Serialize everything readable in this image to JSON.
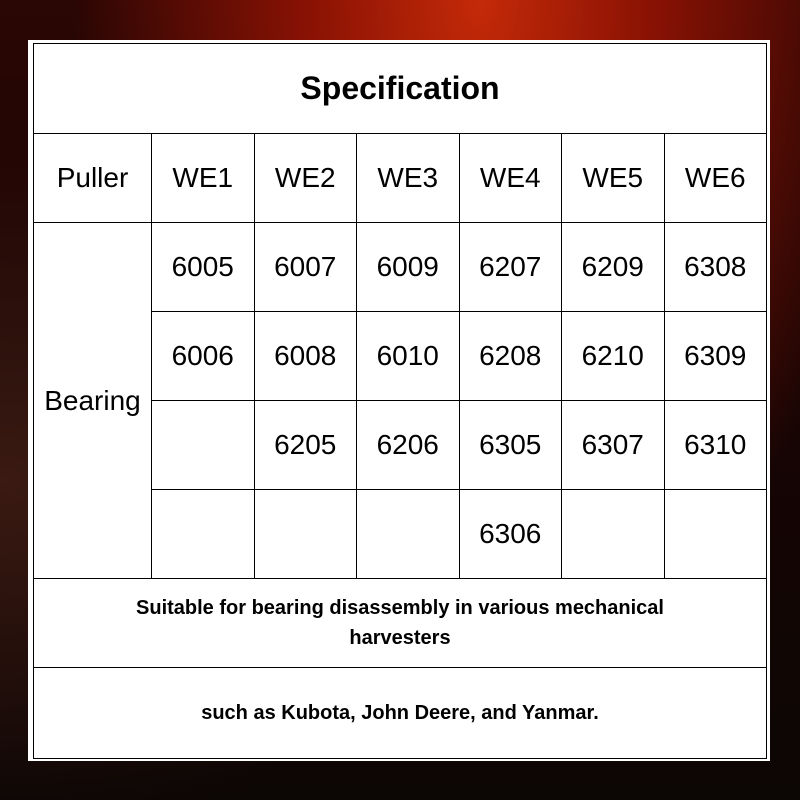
{
  "title": "Specification",
  "header": {
    "label": "Puller",
    "models": [
      "WE1",
      "WE2",
      "WE3",
      "WE4",
      "WE5",
      "WE6"
    ]
  },
  "bearing_label": "Bearing",
  "bearing_rows": [
    [
      "6005",
      "6007",
      "6009",
      "6207",
      "6209",
      "6308"
    ],
    [
      "6006",
      "6008",
      "6010",
      "6208",
      "6210",
      "6309"
    ],
    [
      "",
      "6205",
      "6206",
      "6305",
      "6307",
      "6310"
    ],
    [
      "",
      "",
      "",
      "6306",
      "",
      ""
    ]
  ],
  "notes": [
    "Suitable for bearing disassembly in various mechanical harvesters",
    "such as Kubota, John Deere, and Yanmar."
  ]
}
